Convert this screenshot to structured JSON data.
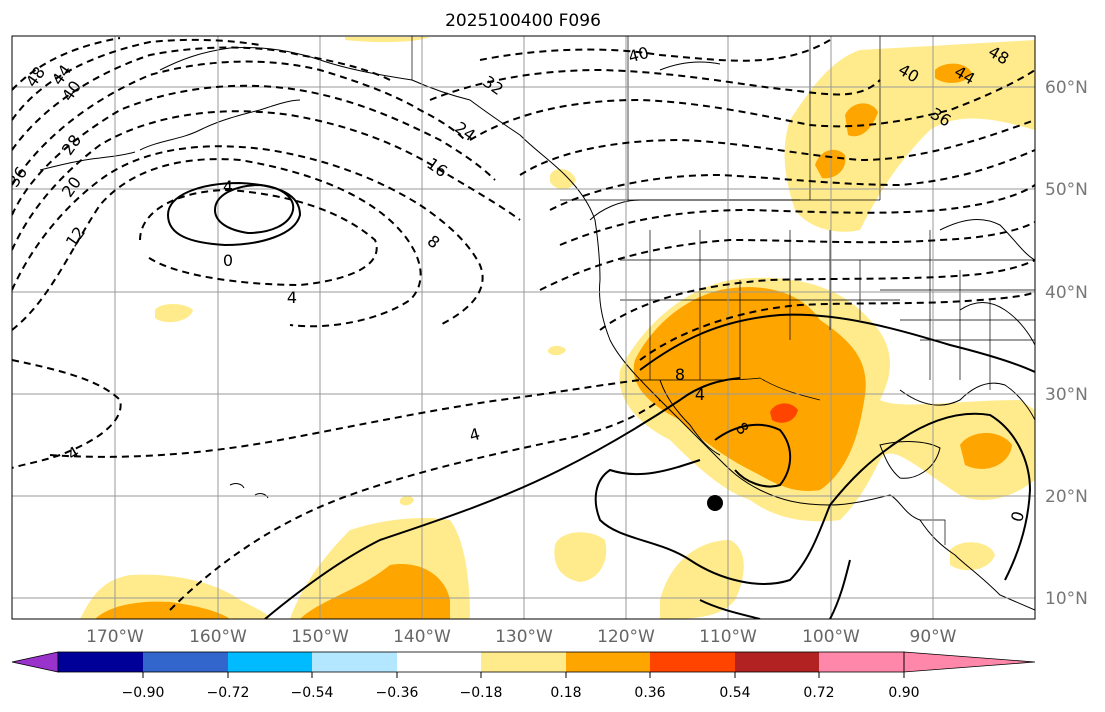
{
  "title": "2025100400 F096",
  "map": {
    "lat_labels": [
      "60°N",
      "50°N",
      "40°N",
      "30°N",
      "20°N",
      "10°N"
    ],
    "lon_labels": [
      "170°W",
      "160°W",
      "150°W",
      "140°W",
      "130°W",
      "120°W",
      "110°W",
      "100°W",
      "90°W"
    ],
    "contour_labels": [
      "48",
      "44",
      "40",
      "36",
      "28",
      "20",
      "12",
      "4",
      "0",
      "4",
      "32",
      "24",
      "16",
      "8",
      "4",
      "4",
      "8",
      "4",
      "8",
      "0",
      "40",
      "44",
      "48",
      "36",
      "40"
    ]
  },
  "colorbar": {
    "tick_labels": [
      "−0.90",
      "−0.72",
      "−0.54",
      "−0.36",
      "−0.18",
      "0.18",
      "0.36",
      "0.54",
      "0.72",
      "0.90"
    ],
    "colors": [
      "#9933cc",
      "#000099",
      "#3366cc",
      "#00bbff",
      "#b3e6ff",
      "#ffffff",
      "#ffeb8c",
      "#ffa500",
      "#ff4400",
      "#b22222",
      "#ff88aa",
      "#ff88aa"
    ]
  },
  "marker": {
    "type": "filled-circle",
    "color": "#000000"
  }
}
